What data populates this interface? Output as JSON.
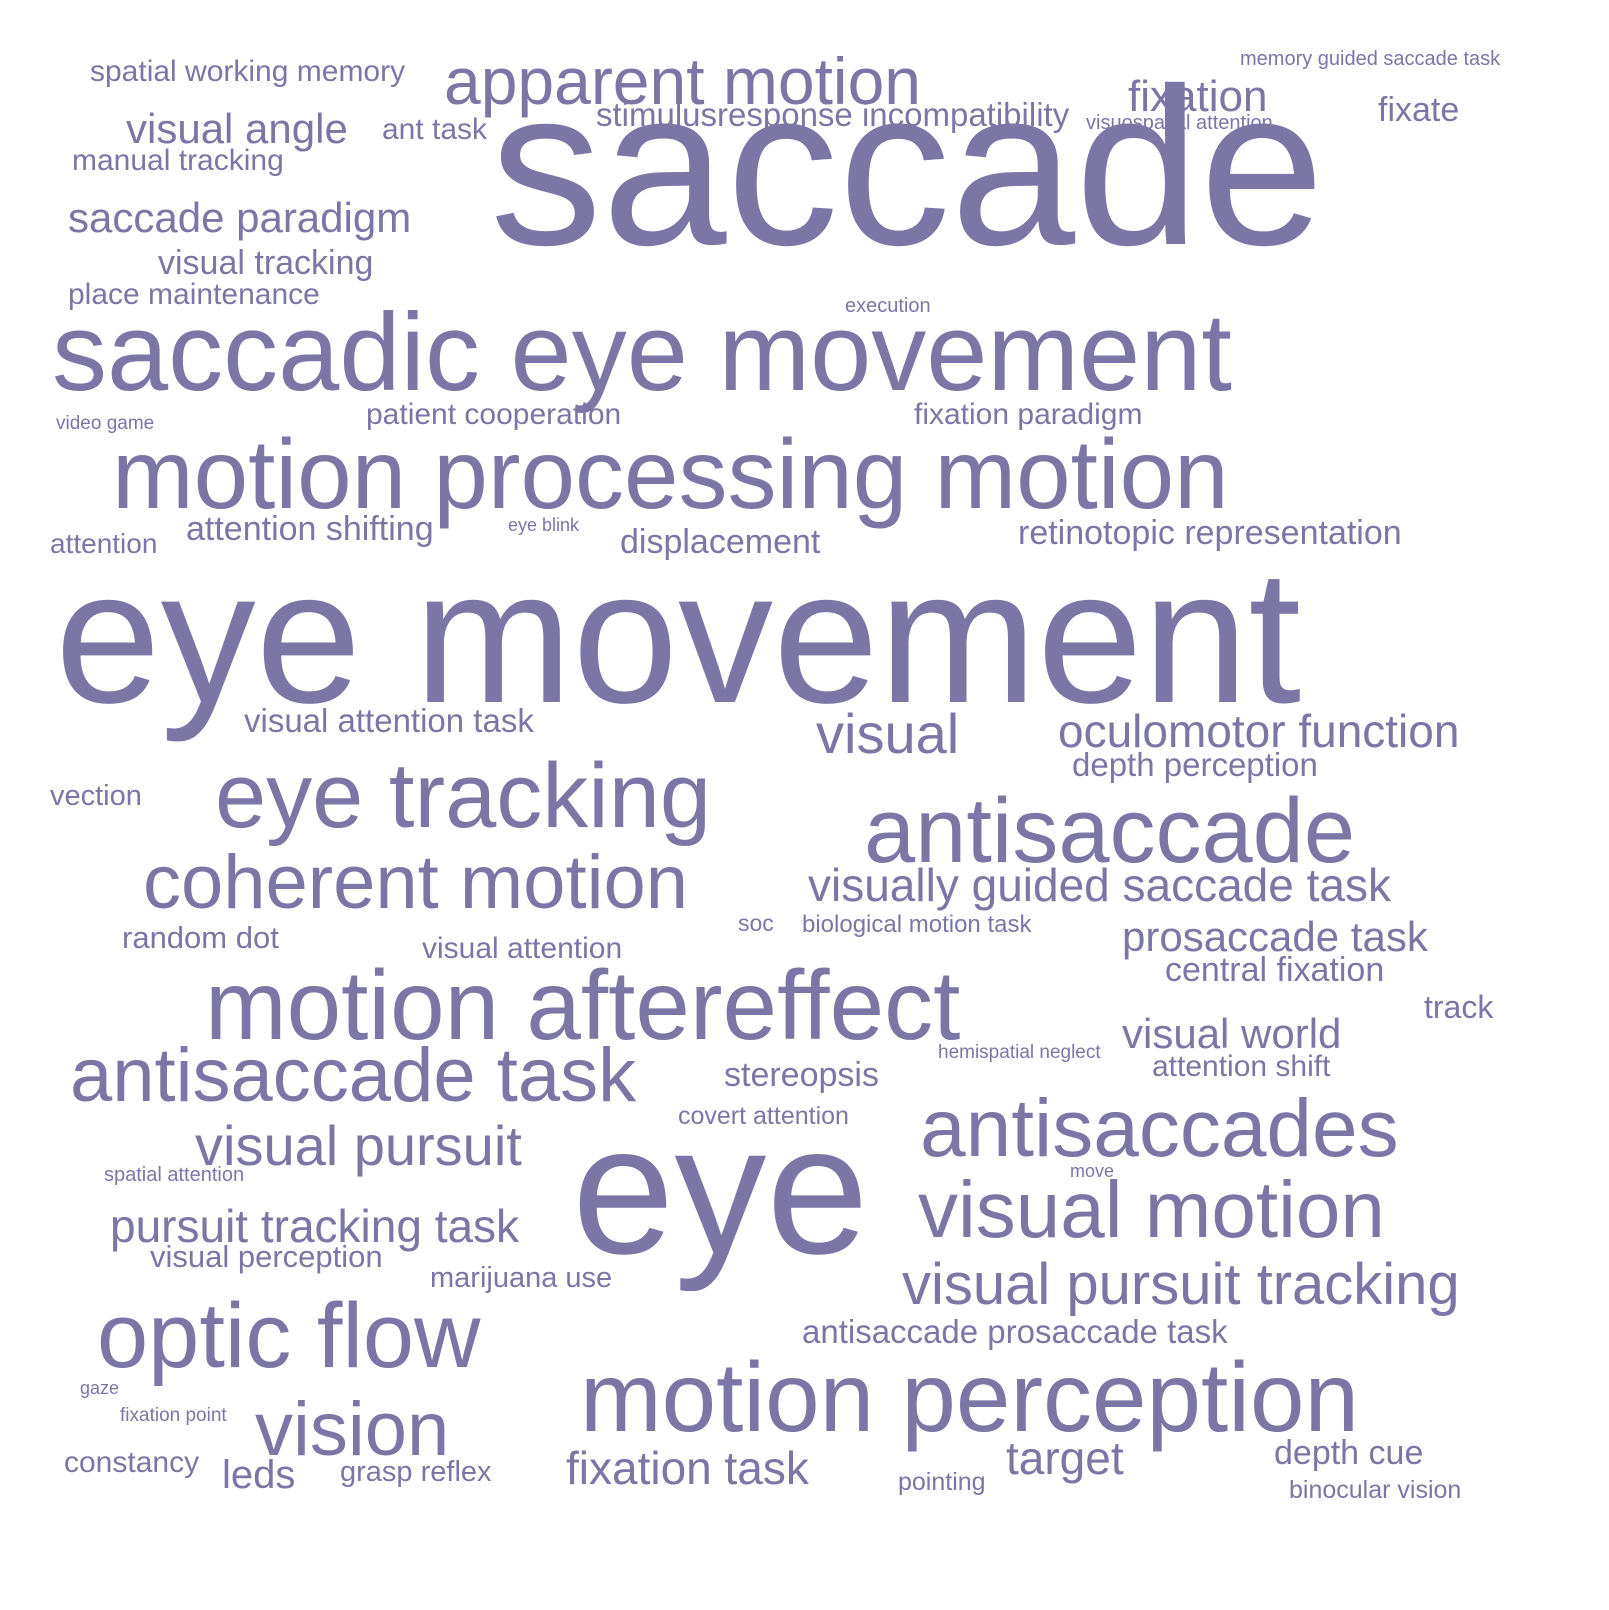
{
  "color": "#7b76a6",
  "background": "#ffffff",
  "words": {
    "saccade": "saccade",
    "eye_movement": "eye movement",
    "saccadic_eye_movement": "saccadic eye movement",
    "motion_processing_motion": "motion processing motion",
    "eye": "eye",
    "motion_perception": "motion perception",
    "motion_aftereffect": "motion aftereffect",
    "eye_tracking": "eye tracking",
    "antisaccade": "antisaccade",
    "antisaccades": "antisaccades",
    "antisaccade_task": "antisaccade task",
    "optic_flow": "optic flow",
    "coherent_motion": "coherent motion",
    "visual_motion": "visual motion",
    "apparent_motion": "apparent motion",
    "vision": "vision",
    "visual_pursuit_tracking": "visual pursuit tracking",
    "visual_pursuit": "visual pursuit",
    "visually_guided_saccade_task": "visually guided saccade task",
    "visual": "visual",
    "oculomotor_function": "oculomotor function",
    "pursuit_tracking_task": "pursuit tracking task",
    "fixation_task": "fixation task",
    "visual_world": "visual world",
    "prosaccade_task": "prosaccade task",
    "visual_angle": "visual angle",
    "saccade_paradigm": "saccade paradigm",
    "fixation": "fixation",
    "target": "target",
    "stimulusresponse_incompatibility": "stimulusresponse incompatibility",
    "antisaccade_prosaccade_task": "antisaccade prosaccade task",
    "retinotopic_representation": "retinotopic representation",
    "depth_cue": "depth cue",
    "visual_tracking": "visual tracking",
    "displacement": "displacement",
    "central_fixation": "central fixation",
    "stereopsis": "stereopsis",
    "fixate": "fixate",
    "attention_shifting": "attention shifting",
    "depth_perception": "depth perception",
    "visual_attention_task": "visual attention task",
    "leds": "leds",
    "spatial_working_memory": "spatial working memory",
    "place_maintenance": "place maintenance",
    "patient_cooperation": "patient cooperation",
    "fixation_paradigm": "fixation paradigm",
    "manual_tracking": "manual tracking",
    "random_dot": "random dot",
    "visual_attention": "visual attention",
    "marijuana_use": "marijuana use",
    "visual_perception": "visual perception",
    "attention_shift": "attention shift",
    "track": "track",
    "ant_task": "ant task",
    "grasp_reflex": "grasp reflex",
    "binocular_vision": "binocular vision",
    "constancy": "constancy",
    "attention": "attention",
    "vection": "vection",
    "covert_attention": "covert attention",
    "pointing": "pointing",
    "biological_motion_task": "biological motion task",
    "memory_guided_saccade_task": "memory guided saccade task",
    "visuospatial_attention": "visuospatial attention",
    "soc": "soc",
    "execution": "execution",
    "hemispatial_neglect": "hemispatial neglect",
    "spatial_attention": "spatial attention",
    "video_game": "video game",
    "eye_blink": "eye blink",
    "move": "move",
    "fixation_point": "fixation point",
    "gaze": "gaze"
  }
}
